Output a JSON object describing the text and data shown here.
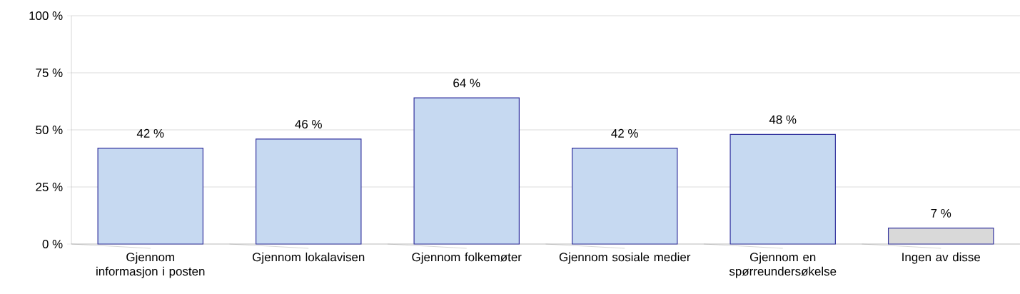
{
  "chart_data": {
    "type": "bar",
    "categories": [
      "Gjennom informasjon i posten",
      "Gjennom lokalavisen",
      "Gjennom folkemøter",
      "Gjennom sosiale medier",
      "Gjennom en spørreundersøkelse",
      "Ingen av disse"
    ],
    "values": [
      42,
      46,
      64,
      42,
      48,
      7
    ],
    "value_labels": [
      "42 %",
      "46 %",
      "64 %",
      "42 %",
      "48 %",
      "7 %"
    ],
    "colors": [
      "#c6d9f1",
      "#c6d9f1",
      "#c6d9f1",
      "#c6d9f1",
      "#c6d9f1",
      "#d9d9d9"
    ],
    "ylim": [
      0,
      100
    ],
    "yticks": [
      {
        "value": 0,
        "label": "0 %"
      },
      {
        "value": 25,
        "label": "25 %"
      },
      {
        "value": 50,
        "label": "50 %"
      },
      {
        "value": 75,
        "label": "75 %"
      },
      {
        "value": 100,
        "label": "100 %"
      }
    ],
    "grid": "y"
  }
}
